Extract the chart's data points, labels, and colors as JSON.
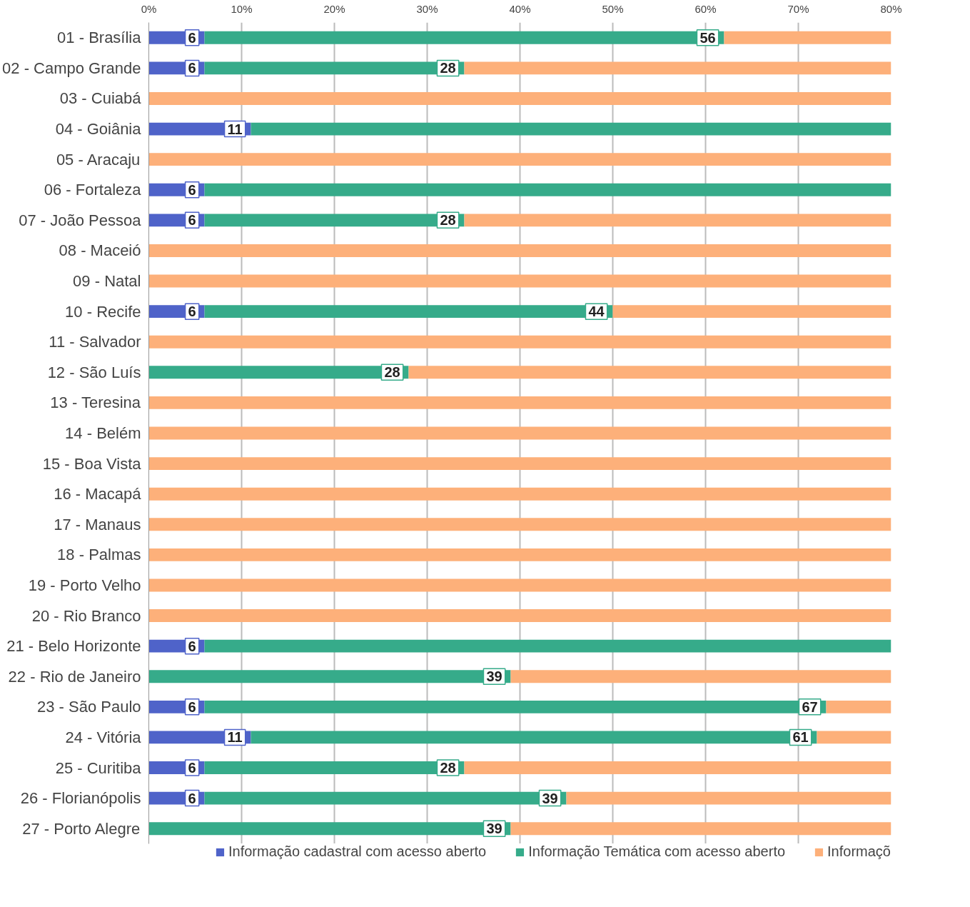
{
  "chart_data": {
    "type": "bar",
    "orientation": "horizontal",
    "stacked": true,
    "categories": [
      "01 - Brasília",
      "02 - Campo Grande",
      "03 - Cuiabá",
      "04 - Goiânia",
      "05 - Aracaju",
      "06 - Fortaleza",
      "07 - João Pessoa",
      "08 - Maceió",
      "09 - Natal",
      "10 - Recife",
      "11 - Salvador",
      "12 - São Luís",
      "13 - Teresina",
      "14 - Belém",
      "15 - Boa Vista",
      "16 - Macapá",
      "17 - Manaus",
      "18 - Palmas",
      "19 - Porto Velho",
      "20 - Rio Branco",
      "21 - Belo Horizonte",
      "22 - Rio de Janeiro",
      "23 - São Paulo",
      "24 - Vitória",
      "25 - Curitiba",
      "26 - Florianópolis",
      "27 - Porto Alegre"
    ],
    "series": [
      {
        "name": "Informação cadastral com acesso aberto",
        "color": "#4f63c9",
        "values": [
          6,
          6,
          0,
          11,
          0,
          6,
          6,
          0,
          0,
          6,
          0,
          0,
          0,
          0,
          0,
          0,
          0,
          0,
          0,
          0,
          6,
          0,
          6,
          11,
          6,
          6,
          0
        ],
        "value_labels": [
          "6",
          "6",
          null,
          "11",
          null,
          "6",
          "6",
          null,
          null,
          "6",
          null,
          null,
          null,
          null,
          null,
          null,
          null,
          null,
          null,
          null,
          "6",
          null,
          "6",
          "11",
          "6",
          "6",
          null
        ]
      },
      {
        "name": "Informação Temática com acesso aberto",
        "color": "#36ab8a",
        "values": [
          56,
          28,
          0,
          69,
          0,
          74,
          28,
          0,
          0,
          44,
          0,
          28,
          0,
          0,
          0,
          0,
          0,
          0,
          0,
          0,
          74,
          39,
          67,
          61,
          28,
          39,
          39
        ],
        "value_labels": [
          "56",
          "28",
          null,
          null,
          null,
          null,
          "28",
          null,
          null,
          "44",
          null,
          "28",
          null,
          null,
          null,
          null,
          null,
          null,
          null,
          null,
          null,
          "39",
          "67",
          "61",
          "28",
          "39",
          "39"
        ]
      },
      {
        "name": "Informaçõ",
        "color": "#fdb07a",
        "values": [
          18,
          46,
          80,
          0,
          80,
          0,
          46,
          80,
          80,
          30,
          80,
          52,
          80,
          80,
          80,
          80,
          80,
          80,
          80,
          80,
          0,
          41,
          7,
          8,
          46,
          35,
          41
        ]
      }
    ],
    "xlim": [
      0,
      80
    ],
    "xticks": [
      {
        "value": 0,
        "label": "0%"
      },
      {
        "value": 10,
        "label": "10%"
      },
      {
        "value": 20,
        "label": "20%"
      },
      {
        "value": 30,
        "label": "30%"
      },
      {
        "value": 40,
        "label": "40%"
      },
      {
        "value": 50,
        "label": "50%"
      },
      {
        "value": 60,
        "label": "60%"
      },
      {
        "value": 70,
        "label": "70%"
      },
      {
        "value": 80,
        "label": "80%"
      }
    ],
    "grid": "x",
    "legend": "bottom"
  }
}
